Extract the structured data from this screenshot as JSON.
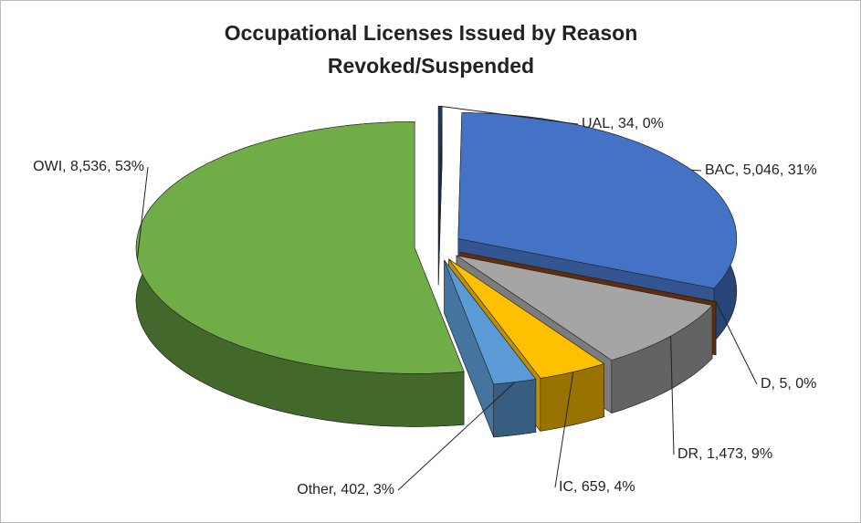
{
  "chart_data": {
    "type": "pie3d",
    "title": [
      "Occupational Licenses Issued by Reason",
      "Revoked/Suspended"
    ],
    "categories": [
      "UAL",
      "BAC",
      "D",
      "DR",
      "IC",
      "Other",
      "OWI"
    ],
    "values": [
      34,
      5046,
      5,
      1473,
      659,
      402,
      8536
    ],
    "value_labels": [
      "UAL, 34, 0%",
      "BAC, 5,046, 31%",
      "D, 5, 0%",
      "DR, 1,473, 9%",
      "IC, 659, 4%",
      "Other, 402, 3%",
      "OWI, 8,536, 53%"
    ],
    "colors": [
      "#1f3864",
      "#4472c4",
      "#843c0c",
      "#a5a5a5",
      "#ffc000",
      "#5b9bd5",
      "#70ad47"
    ]
  }
}
